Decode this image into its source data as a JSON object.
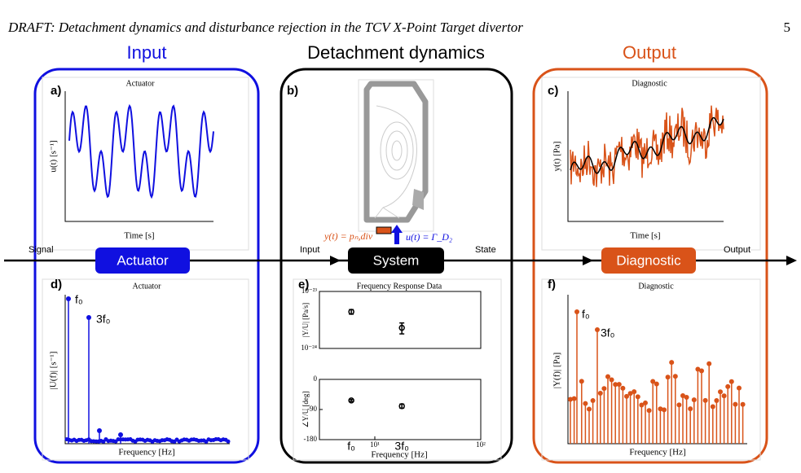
{
  "header": {
    "title": "DRAFT: Detachment dynamics and disturbance rejection in the TCV X-Point Target divertor",
    "page": "5"
  },
  "columns": [
    "Input",
    "Detachment dynamics",
    "Output"
  ],
  "signal_flow": {
    "labels": [
      "Signal",
      "Input",
      "State",
      "Output"
    ],
    "blocks": [
      "Actuator",
      "System",
      "Diagnostic"
    ]
  },
  "panels": {
    "a": {
      "label": "a)",
      "title": "Actuator",
      "xlabel": "Time [s]",
      "ylabel": "u(t) [s⁻¹]"
    },
    "b": {
      "label": "b)",
      "output_label": "y(t) = pₙ,div",
      "input_label": "u(t) = Γ_D₂"
    },
    "c": {
      "label": "c)",
      "title": "Diagnostic",
      "xlabel": "Time [s]",
      "ylabel": "y(t) [Pa]"
    },
    "d": {
      "label": "d)",
      "title": "Actuator",
      "xlabel": "Frequency [Hz]",
      "ylabel": "|U(f)| [s⁻¹]",
      "annotations": [
        "f₀",
        "3f₀"
      ]
    },
    "e": {
      "label": "e)"
    },
    "f": {
      "label": "f)",
      "title": "Diagnostic",
      "xlabel": "Frequency [Hz]",
      "ylabel": "|Y(f)| [Pa]",
      "annotations": [
        "f₀",
        "3f₀"
      ]
    }
  },
  "chart_data": [
    {
      "type": "errorbar",
      "title": "Frequency Response Data",
      "ylabel": "|Y/U| [Pa/s]",
      "x": [
        6,
        18
      ],
      "values": [
        4.4e-24,
        2.3e-24
      ],
      "errors": [
        4e-25,
        5e-25
      ],
      "xlog": true,
      "xlim": [
        3,
        100
      ],
      "ylog": true,
      "ylim": [
        1e-24,
        1e-23
      ],
      "yticks": [
        {
          "value": 1e-24,
          "label": "10⁻²⁴"
        },
        {
          "value": 1e-23,
          "label": "10⁻²³"
        }
      ],
      "color": "#000000"
    },
    {
      "type": "errorbar",
      "ylabel": "∠Y/U [deg]",
      "xlabel": "Frequency [Hz]",
      "x": [
        6,
        18
      ],
      "values": [
        -63,
        -80
      ],
      "errors": [
        3,
        6
      ],
      "xlog": true,
      "xlim": [
        3,
        100
      ],
      "xticks": [
        {
          "value": 10,
          "label": "10¹"
        },
        {
          "value": 100,
          "label": "10²"
        }
      ],
      "ylim": [
        -180,
        0
      ],
      "yticks": [
        -180,
        -90,
        0
      ],
      "annotations": [
        "f₀",
        "3f₀"
      ],
      "color": "#000000"
    }
  ]
}
